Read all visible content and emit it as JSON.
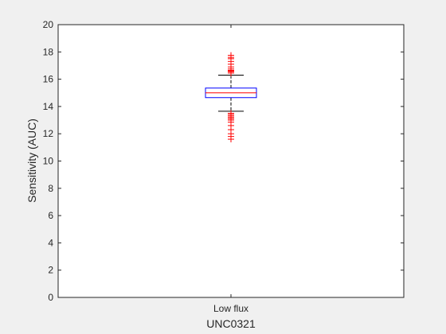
{
  "chart_data": {
    "type": "box",
    "title": "",
    "xlabel": "UNC0321",
    "ylabel": "Sensitivity (AUC)",
    "ylim": [
      0,
      20
    ],
    "yticks": [
      0,
      2,
      4,
      6,
      8,
      10,
      12,
      14,
      16,
      18,
      20
    ],
    "categories": [
      "Low flux"
    ],
    "grid": false,
    "legend": "none",
    "boxes": [
      {
        "category": "Low flux",
        "median": 15.0,
        "q1": 14.65,
        "q3": 15.35,
        "whisker_low": 13.65,
        "whisker_high": 16.3,
        "outliers": [
          17.75,
          17.6,
          17.5,
          17.3,
          17.1,
          16.9,
          16.75,
          16.65,
          16.6,
          16.55,
          16.45,
          13.5,
          13.4,
          13.3,
          13.2,
          13.1,
          13.0,
          12.85,
          12.6,
          12.3,
          12.0,
          11.8,
          11.6
        ]
      }
    ],
    "colors": {
      "box": "#0000ff",
      "median": "#ff0000",
      "whisker": "#000000",
      "outlier": "#ff0000",
      "axes": "#262626",
      "background": "#ffffff",
      "figure": "#f0f0f0"
    }
  }
}
